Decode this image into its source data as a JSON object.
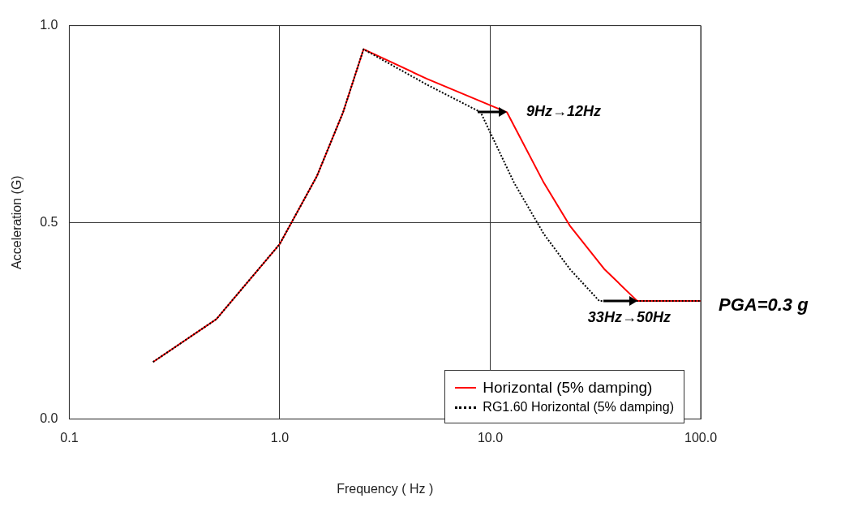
{
  "chart_data": {
    "type": "line",
    "xlabel": "Frequency ( Hz )",
    "ylabel": "Acceleration (G)",
    "log": "x",
    "xlim": [
      0.1,
      100
    ],
    "xticks": [
      {
        "value": 0.1,
        "label": "0.1"
      },
      {
        "value": 1,
        "label": "1.0"
      },
      {
        "value": 10,
        "label": "10.0"
      },
      {
        "value": 100,
        "label": "100.0"
      }
    ],
    "ylim": [
      0,
      1
    ],
    "yticks": [
      {
        "value": 0,
        "label": "0.0"
      },
      {
        "value": 0.5,
        "label": "0.5"
      },
      {
        "value": 1,
        "label": "1.0"
      }
    ],
    "grid": true,
    "legend": "bottom right",
    "marker": "none",
    "series": [
      {
        "name": "Horizontal (5% damping)",
        "color": "#ff0000",
        "line_style": "solid",
        "x": [
          0.25,
          0.5,
          1,
          1.5,
          2,
          2.5,
          5,
          12,
          18,
          24,
          35,
          50,
          100
        ],
        "values": [
          0.145,
          0.254,
          0.445,
          0.617,
          0.78,
          0.94,
          0.865,
          0.78,
          0.6,
          0.49,
          0.38,
          0.3,
          0.3
        ]
      },
      {
        "name": "RG1.60 Horizontal (5% damping)",
        "color": "#000000",
        "line_style": "dotted",
        "x": [
          0.25,
          0.5,
          1,
          1.5,
          2,
          2.5,
          5,
          9,
          13,
          18,
          24,
          33,
          50,
          100
        ],
        "values": [
          0.145,
          0.254,
          0.445,
          0.617,
          0.78,
          0.94,
          0.85,
          0.78,
          0.6,
          0.47,
          0.38,
          0.3,
          0.3,
          0.3
        ]
      }
    ],
    "annotations": [
      {
        "text": "9Hz→12Hz",
        "x": 12,
        "y": 0.78
      },
      {
        "text": "33Hz→50Hz",
        "x": 50,
        "y": 0.3
      },
      {
        "text": "PGA=0.3 g",
        "x": 100,
        "y": 0.3
      }
    ]
  }
}
